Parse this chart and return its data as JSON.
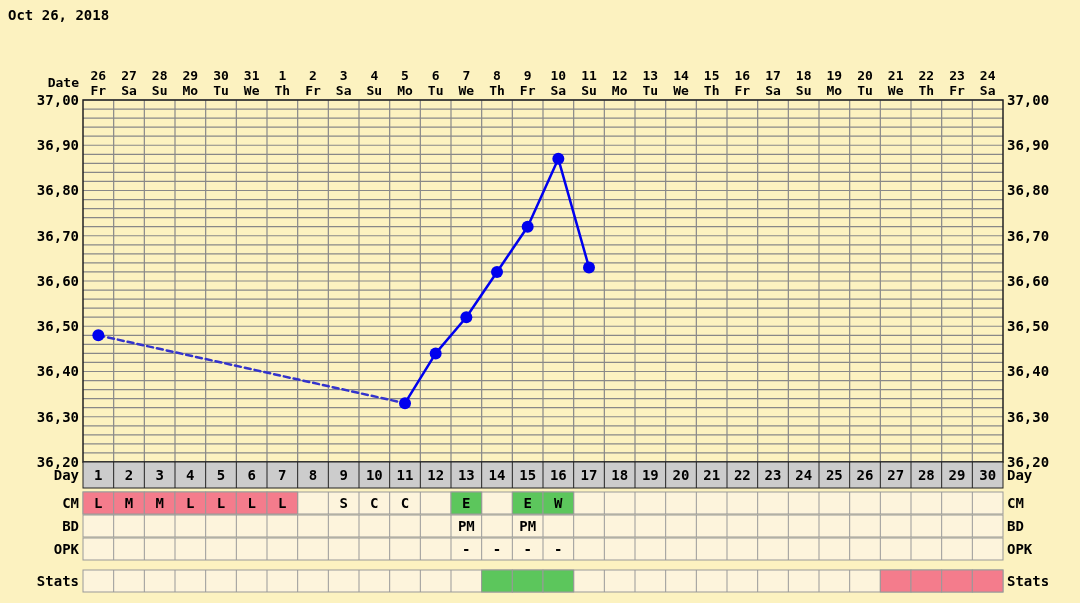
{
  "chart_data": [
    {
      "type": "line",
      "title": "Oct 26, 2018",
      "xlabel": "Day",
      "x2label": "Date",
      "xlim": [
        0.5,
        30.5
      ],
      "xticks": [
        1,
        2,
        3,
        4,
        5,
        6,
        7,
        8,
        9,
        10,
        11,
        12,
        13,
        14,
        15,
        16,
        17,
        18,
        19,
        20,
        21,
        22,
        23,
        24,
        25,
        26,
        27,
        28,
        29,
        30
      ],
      "x2lim": [
        "2018-10-25T12:00",
        "2018-11-24T12:00"
      ],
      "x2ticks": [
        {
          "value": "2018-10-26",
          "label": "26 Fr"
        },
        {
          "value": "2018-10-27",
          "label": "27 Sa"
        },
        {
          "value": "2018-10-28",
          "label": "28 Su"
        },
        {
          "value": "2018-10-29",
          "label": "29 Mo"
        },
        {
          "value": "2018-10-30",
          "label": "30 Tu"
        },
        {
          "value": "2018-10-31",
          "label": "31 We"
        },
        {
          "value": "2018-11-01",
          "label": "1 Th"
        },
        {
          "value": "2018-11-02",
          "label": "2 Fr"
        },
        {
          "value": "2018-11-03",
          "label": "3 Sa"
        },
        {
          "value": "2018-11-04",
          "label": "4 Su"
        },
        {
          "value": "2018-11-05",
          "label": "5 Mo"
        },
        {
          "value": "2018-11-06",
          "label": "6 Tu"
        },
        {
          "value": "2018-11-07",
          "label": "7 We"
        },
        {
          "value": "2018-11-08",
          "label": "8 Th"
        },
        {
          "value": "2018-11-09",
          "label": "9 Fr"
        },
        {
          "value": "2018-11-10",
          "label": "10 Sa"
        },
        {
          "value": "2018-11-11",
          "label": "11 Su"
        },
        {
          "value": "2018-11-12",
          "label": "12 Mo"
        },
        {
          "value": "2018-11-13",
          "label": "13 Tu"
        },
        {
          "value": "2018-11-14",
          "label": "14 We"
        },
        {
          "value": "2018-11-15",
          "label": "15 Th"
        },
        {
          "value": "2018-11-16",
          "label": "16 Fr"
        },
        {
          "value": "2018-11-17",
          "label": "17 Sa"
        },
        {
          "value": "2018-11-18",
          "label": "18 Su"
        },
        {
          "value": "2018-11-19",
          "label": "19 Mo"
        },
        {
          "value": "2018-11-20",
          "label": "20 Tu"
        },
        {
          "value": "2018-11-21",
          "label": "21 We"
        },
        {
          "value": "2018-11-22",
          "label": "22 Th"
        },
        {
          "value": "2018-11-23",
          "label": "23 Fr"
        },
        {
          "value": "2018-11-24",
          "label": "24 Sa"
        }
      ],
      "ylim": [
        36.2,
        37.0
      ],
      "yticks": [
        {
          "value": 36.2,
          "label": "36,20"
        },
        {
          "value": 36.22,
          "label": null
        },
        {
          "value": 36.24,
          "label": null
        },
        {
          "value": 36.26,
          "label": null
        },
        {
          "value": 36.28,
          "label": null
        },
        {
          "value": 36.3,
          "label": "36,30"
        },
        {
          "value": 36.32,
          "label": null
        },
        {
          "value": 36.34,
          "label": null
        },
        {
          "value": 36.36,
          "label": null
        },
        {
          "value": 36.38,
          "label": null
        },
        {
          "value": 36.4,
          "label": "36,40"
        },
        {
          "value": 36.42,
          "label": null
        },
        {
          "value": 36.44,
          "label": null
        },
        {
          "value": 36.46,
          "label": null
        },
        {
          "value": 36.48,
          "label": null
        },
        {
          "value": 36.5,
          "label": "36,50"
        },
        {
          "value": 36.52,
          "label": null
        },
        {
          "value": 36.54,
          "label": null
        },
        {
          "value": 36.56,
          "label": null
        },
        {
          "value": 36.58,
          "label": null
        },
        {
          "value": 36.6,
          "label": "36,60"
        },
        {
          "value": 36.62,
          "label": null
        },
        {
          "value": 36.64,
          "label": null
        },
        {
          "value": 36.66,
          "label": null
        },
        {
          "value": 36.68,
          "label": null
        },
        {
          "value": 36.7,
          "label": "36,70"
        },
        {
          "value": 36.72,
          "label": null
        },
        {
          "value": 36.74,
          "label": null
        },
        {
          "value": 36.76,
          "label": null
        },
        {
          "value": 36.78,
          "label": null
        },
        {
          "value": 36.8,
          "label": "36,80"
        },
        {
          "value": 36.82,
          "label": null
        },
        {
          "value": 36.84,
          "label": null
        },
        {
          "value": 36.86,
          "label": null
        },
        {
          "value": 36.88,
          "label": null
        },
        {
          "value": 36.9,
          "label": "36,90"
        },
        {
          "value": 36.92,
          "label": null
        },
        {
          "value": 36.94,
          "label": null
        },
        {
          "value": 36.96,
          "label": null
        },
        {
          "value": 36.98,
          "label": null
        },
        {
          "value": 37.0,
          "label": "37,00"
        }
      ],
      "y2lim": [
        36.2,
        37.0
      ],
      "y2ticks": [
        {
          "value": 36.2,
          "label": "36,20"
        },
        {
          "value": 36.3,
          "label": "36,30"
        },
        {
          "value": 36.4,
          "label": "36,40"
        },
        {
          "value": 36.5,
          "label": "36,50"
        },
        {
          "value": 36.6,
          "label": "36,60"
        },
        {
          "value": 36.7,
          "label": "36,70"
        },
        {
          "value": 36.8,
          "label": "36,80"
        },
        {
          "value": 36.9,
          "label": "36,90"
        },
        {
          "value": 37.0,
          "label": "37,00"
        }
      ],
      "grid": true,
      "series": [
        {
          "color": "#3333cc",
          "x": [
            1,
            11
          ],
          "values": [
            36.48,
            36.33
          ],
          "line_style": "dashed",
          "marker": "none"
        },
        {
          "color": "#0000ee",
          "x": [
            1,
            2,
            3,
            4,
            5,
            6,
            7,
            8,
            9,
            10,
            11,
            12,
            13,
            14,
            15,
            16,
            17
          ],
          "values": [
            36.48,
            null,
            null,
            null,
            null,
            null,
            null,
            null,
            null,
            null,
            36.33,
            36.44,
            36.52,
            36.62,
            36.72,
            36.87,
            36.63
          ],
          "line_style": "solid",
          "marker": "circle"
        }
      ]
    },
    {
      "type": "other",
      "categories": [
        null,
        null,
        null,
        null,
        null,
        null,
        null,
        null,
        null,
        null,
        null,
        null,
        null,
        null,
        null,
        null,
        null,
        null,
        null,
        null,
        null,
        null,
        null,
        null,
        null,
        null,
        null,
        null,
        null,
        null
      ],
      "y_categories": [
        "CM",
        "BD",
        "OPK",
        "Stats"
      ],
      "y2_categories": [
        "CM",
        "BD",
        "OPK",
        "Stats"
      ],
      "cell_labels": [
        [
          "L",
          "M",
          "M",
          "L",
          "L",
          "L",
          "L",
          null,
          "S",
          "C",
          "C",
          null,
          "E",
          null,
          "E",
          "W",
          null,
          null,
          null,
          null,
          null,
          null,
          null,
          null,
          null,
          null,
          null,
          null,
          null,
          null
        ],
        [
          null,
          null,
          null,
          null,
          null,
          null,
          null,
          null,
          null,
          null,
          null,
          null,
          "PM",
          null,
          "PM",
          null,
          null,
          null,
          null,
          null,
          null,
          null,
          null,
          null,
          null,
          null,
          null,
          null,
          null,
          null
        ],
        [
          null,
          null,
          null,
          null,
          null,
          null,
          null,
          null,
          null,
          null,
          null,
          null,
          "-",
          "-",
          "-",
          "-",
          null,
          null,
          null,
          null,
          null,
          null,
          null,
          null,
          null,
          null,
          null,
          null,
          null,
          null
        ],
        [
          null,
          null,
          null,
          null,
          null,
          null,
          null,
          null,
          null,
          null,
          null,
          null,
          null,
          null,
          null,
          null,
          null,
          null,
          null,
          null,
          null,
          null,
          null,
          null,
          null,
          null,
          null,
          null,
          null,
          null
        ]
      ],
      "colors": [
        [
          "#f47c8c",
          "#f47c8c",
          "#f47c8c",
          "#f47c8c",
          "#f47c8c",
          "#f47c8c",
          "#f47c8c",
          null,
          null,
          null,
          null,
          null,
          "#5cc65c",
          null,
          "#5cc65c",
          "#5cc65c",
          null,
          null,
          null,
          null,
          null,
          null,
          null,
          null,
          null,
          null,
          null,
          null,
          null,
          null
        ],
        [
          null,
          null,
          null,
          null,
          null,
          null,
          null,
          null,
          null,
          null,
          null,
          null,
          null,
          null,
          null,
          null,
          null,
          null,
          null,
          null,
          null,
          null,
          null,
          null,
          null,
          null,
          null,
          null,
          null,
          null
        ],
        [
          null,
          null,
          null,
          null,
          null,
          null,
          null,
          null,
          null,
          null,
          null,
          null,
          null,
          null,
          null,
          null,
          null,
          null,
          null,
          null,
          null,
          null,
          null,
          null,
          null,
          null,
          null,
          null,
          null,
          null
        ],
        [
          null,
          null,
          null,
          null,
          null,
          null,
          null,
          null,
          null,
          null,
          null,
          null,
          null,
          "#5cc65c",
          "#5cc65c",
          "#5cc65c",
          null,
          null,
          null,
          null,
          null,
          null,
          null,
          null,
          null,
          null,
          "#f47c8c",
          "#f47c8c",
          "#f47c8c",
          "#f47c8c"
        ]
      ]
    }
  ]
}
